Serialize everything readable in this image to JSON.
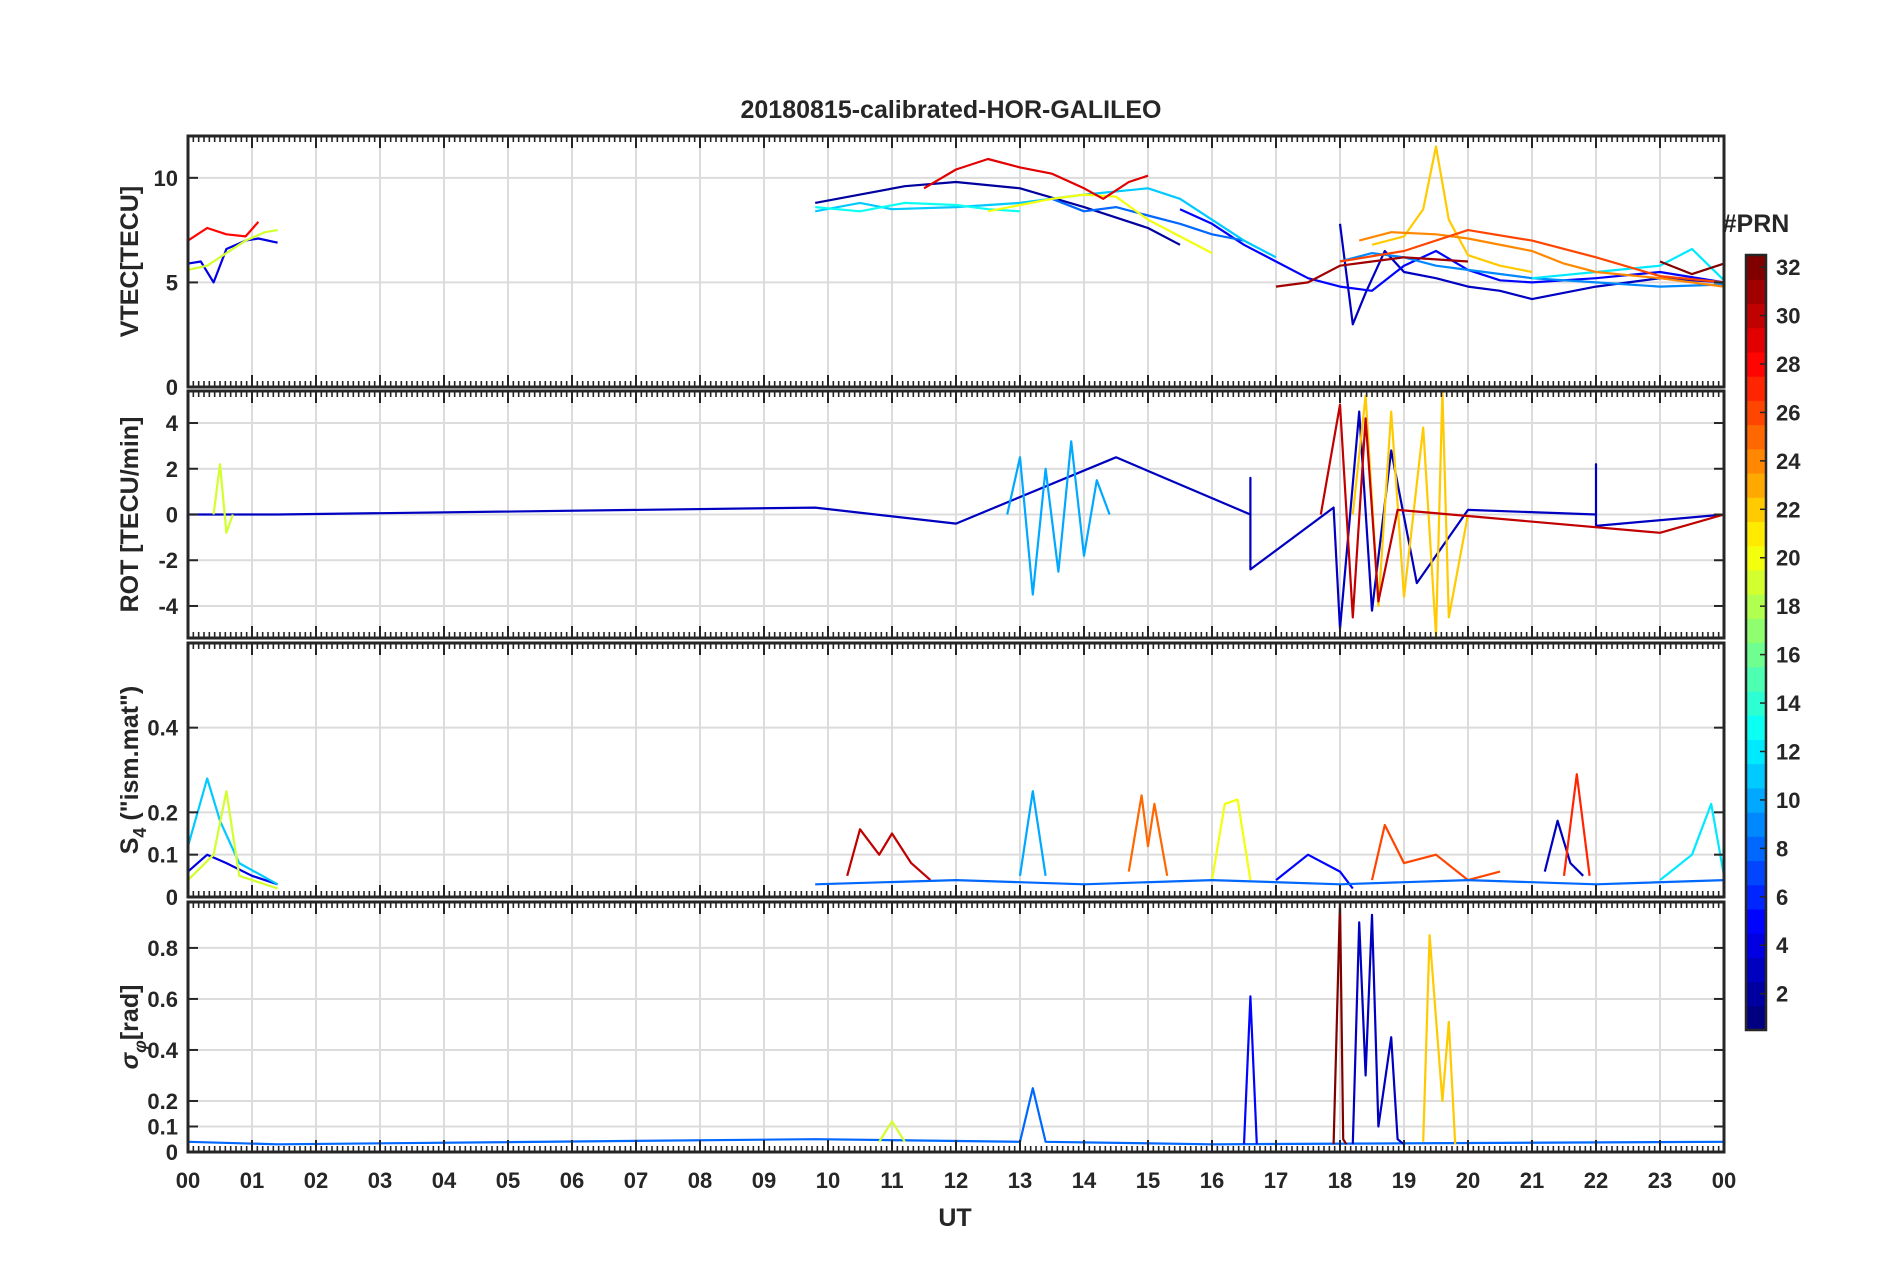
{
  "chart_data": {
    "type": "line",
    "title": "20180815-calibrated-HOR-GALILEO",
    "xlabel": "UT",
    "x_ticks": [
      "00",
      "01",
      "02",
      "03",
      "04",
      "05",
      "06",
      "07",
      "08",
      "09",
      "10",
      "11",
      "12",
      "13",
      "14",
      "15",
      "16",
      "17",
      "18",
      "19",
      "20",
      "21",
      "22",
      "23",
      "00"
    ],
    "xlim": [
      0,
      24
    ],
    "panels": [
      {
        "id": "vtec",
        "ylabel": "VTEC[TECU]",
        "ylim": [
          0,
          12
        ],
        "yticks": [
          {
            "v": 0,
            "label": "0"
          },
          {
            "v": 5,
            "label": "5"
          },
          {
            "v": 10,
            "label": "10"
          }
        ],
        "series": [
          {
            "prn": 2,
            "x": [
              9.8,
              10.5,
              11.2,
              12.0,
              13.0,
              14.0,
              15.0,
              15.5
            ],
            "y": [
              8.8,
              9.2,
              9.6,
              9.8,
              9.5,
              8.6,
              7.6,
              6.8
            ]
          },
          {
            "prn": 3,
            "x": [
              18.0,
              18.2,
              18.4,
              18.7,
              19.0,
              19.5,
              20.0,
              20.5,
              21.0,
              22.0,
              23.0,
              24.0
            ],
            "y": [
              7.8,
              3.0,
              4.5,
              6.5,
              5.5,
              5.2,
              4.8,
              4.6,
              4.2,
              4.8,
              5.2,
              5.0
            ]
          },
          {
            "prn": 4,
            "x": [
              0.0,
              0.2,
              0.4,
              0.6,
              0.9,
              1.1,
              1.4
            ],
            "y": [
              5.9,
              6.0,
              5.0,
              6.6,
              7.0,
              7.1,
              6.9
            ]
          },
          {
            "prn": 5,
            "x": [
              15.5,
              16.0,
              16.5,
              17.0,
              17.5,
              18.0,
              18.5,
              19.0,
              19.5,
              20.0,
              20.5,
              21.0,
              22.0,
              23.0,
              24.0
            ],
            "y": [
              8.5,
              7.8,
              6.8,
              6.0,
              5.2,
              4.8,
              4.6,
              5.8,
              6.5,
              5.6,
              5.1,
              5.0,
              5.2,
              5.5,
              5.0
            ]
          },
          {
            "prn": 8,
            "x": [
              13.5,
              14.0,
              14.5,
              15.0,
              15.5,
              16.0,
              16.5
            ],
            "y": [
              9.0,
              8.4,
              8.6,
              8.2,
              7.8,
              7.3,
              7.0
            ]
          },
          {
            "prn": 9,
            "x": [
              18.0,
              18.5,
              19.0,
              19.5,
              20.0,
              21.0,
              22.0,
              23.0,
              24.0
            ],
            "y": [
              6.0,
              6.4,
              6.2,
              5.8,
              5.6,
              5.2,
              5.0,
              4.8,
              4.9
            ]
          },
          {
            "prn": 11,
            "x": [
              9.8,
              10.5,
              11.0,
              12.0,
              13.0,
              14.0,
              15.0,
              15.5,
              16.0,
              16.5,
              17.0
            ],
            "y": [
              8.4,
              8.8,
              8.5,
              8.6,
              8.8,
              9.2,
              9.5,
              9.0,
              8.0,
              7.0,
              6.2
            ]
          },
          {
            "prn": 12,
            "x": [
              21.0,
              22.0,
              23.0,
              23.5,
              24.0
            ],
            "y": [
              5.2,
              5.5,
              5.8,
              6.6,
              5.1
            ]
          },
          {
            "prn": 13,
            "x": [
              9.8,
              10.5,
              11.2,
              12.0,
              12.5,
              13.0
            ],
            "y": [
              8.6,
              8.4,
              8.8,
              8.7,
              8.5,
              8.4
            ]
          },
          {
            "prn": 19,
            "x": [
              0.0,
              0.3,
              0.6,
              0.9,
              1.2,
              1.4
            ],
            "y": [
              5.6,
              5.8,
              6.4,
              7.0,
              7.4,
              7.5
            ]
          },
          {
            "prn": 20,
            "x": [
              12.5,
              13.0,
              13.5,
              14.0,
              14.5,
              15.0,
              15.5,
              16.0
            ],
            "y": [
              8.4,
              8.7,
              9.0,
              9.2,
              9.1,
              8.0,
              7.2,
              6.4
            ]
          },
          {
            "prn": 22,
            "x": [
              18.5,
              19.0,
              19.3,
              19.5,
              19.7,
              20.0,
              20.5,
              21.0
            ],
            "y": [
              6.8,
              7.2,
              8.5,
              11.5,
              8.0,
              6.3,
              5.8,
              5.5
            ]
          },
          {
            "prn": 24,
            "x": [
              18.3,
              18.8,
              19.5,
              20.0,
              21.0,
              21.5,
              22.0,
              23.0,
              24.0
            ],
            "y": [
              7.0,
              7.4,
              7.3,
              7.1,
              6.5,
              5.9,
              5.5,
              5.2,
              4.8
            ]
          },
          {
            "prn": 26,
            "x": [
              18.0,
              19.0,
              20.0,
              21.0,
              22.0,
              23.0,
              24.0
            ],
            "y": [
              6.0,
              6.5,
              7.5,
              7.0,
              6.2,
              5.3,
              5.0
            ]
          },
          {
            "prn": 28,
            "x": [
              0.0,
              0.3,
              0.6,
              0.9,
              1.1
            ],
            "y": [
              7.0,
              7.6,
              7.3,
              7.2,
              7.9
            ]
          },
          {
            "prn": 29,
            "x": [
              11.5,
              12.0,
              12.5,
              13.0,
              13.5,
              14.0,
              14.3,
              14.7,
              15.0
            ],
            "y": [
              9.5,
              10.4,
              10.9,
              10.5,
              10.2,
              9.5,
              9.0,
              9.8,
              10.1
            ]
          },
          {
            "prn": 31,
            "x": [
              17.0,
              17.5,
              18.0,
              18.5,
              19.0,
              19.5,
              20.0
            ],
            "y": [
              4.8,
              5.0,
              5.8,
              6.0,
              6.2,
              6.1,
              6.0
            ]
          },
          {
            "prn": 32,
            "x": [
              23.0,
              23.5,
              24.0
            ],
            "y": [
              6.0,
              5.4,
              5.9
            ]
          }
        ]
      },
      {
        "id": "rot",
        "ylabel": "ROT [TECU/min]",
        "ylim": [
          -5.4,
          5.4
        ],
        "yticks": [
          {
            "v": -4,
            "label": "-4"
          },
          {
            "v": -2,
            "label": "-2"
          },
          {
            "v": 0,
            "label": "0"
          },
          {
            "v": 2,
            "label": "2"
          },
          {
            "v": 4,
            "label": "4"
          }
        ],
        "series": [
          {
            "prn": 3,
            "x": [
              0.0,
              1.4,
              9.8,
              12.0,
              14.5,
              16.6,
              16.6,
              16.6,
              17.9,
              18.0,
              18.3,
              18.5,
              18.8,
              19.2,
              20.0,
              22.0,
              22.0,
              22.0,
              24.0
            ],
            "y": [
              0.0,
              0.0,
              0.3,
              -0.4,
              2.5,
              0.0,
              1.6,
              -2.4,
              0.3,
              -5.0,
              4.5,
              -4.2,
              2.8,
              -3.0,
              0.2,
              0.0,
              2.2,
              -0.5,
              0.0
            ]
          },
          {
            "prn": 10,
            "x": [
              12.8,
              13.0,
              13.2,
              13.4,
              13.6,
              13.8,
              14.0,
              14.2,
              14.4
            ],
            "y": [
              0.0,
              2.5,
              -3.5,
              2.0,
              -2.5,
              3.2,
              -1.8,
              1.5,
              0.0
            ]
          },
          {
            "prn": 19,
            "x": [
              0.4,
              0.5,
              0.6,
              0.7
            ],
            "y": [
              0.0,
              2.2,
              -0.8,
              0.0
            ]
          },
          {
            "prn": 22,
            "x": [
              18.2,
              18.4,
              18.6,
              18.8,
              19.0,
              19.3,
              19.5,
              19.6,
              19.7,
              20.0
            ],
            "y": [
              0.0,
              5.2,
              -4.0,
              4.5,
              -3.6,
              3.8,
              -5.3,
              5.4,
              -4.5,
              0.0
            ]
          },
          {
            "prn": 30,
            "x": [
              17.7,
              18.0,
              18.2,
              18.4,
              18.6,
              18.9,
              23.0,
              24.0
            ],
            "y": [
              0.0,
              4.8,
              -4.5,
              4.2,
              -3.8,
              0.2,
              -0.8,
              0.0
            ]
          }
        ]
      },
      {
        "id": "s4",
        "ylabel": "S4 (\"ism.mat\")",
        "ylabel_main": "S",
        "ylabel_sub": "4",
        "ylabel_rest": " (\"ism.mat\")",
        "ylim": [
          0,
          0.6
        ],
        "yticks": [
          {
            "v": 0,
            "label": "0"
          },
          {
            "v": 0.1,
            "label": "0.1"
          },
          {
            "v": 0.2,
            "label": "0.2"
          },
          {
            "v": 0.4,
            "label": "0.4"
          }
        ],
        "series": [
          {
            "prn": 4,
            "x": [
              0.0,
              0.3,
              0.6,
              1.0,
              1.4
            ],
            "y": [
              0.06,
              0.1,
              0.08,
              0.05,
              0.03
            ]
          },
          {
            "prn": 11,
            "x": [
              0.0,
              0.3,
              0.5,
              0.8,
              1.4
            ],
            "y": [
              0.12,
              0.28,
              0.18,
              0.08,
              0.03
            ]
          },
          {
            "prn": 19,
            "x": [
              0.0,
              0.4,
              0.6,
              0.8,
              1.4
            ],
            "y": [
              0.04,
              0.1,
              0.25,
              0.05,
              0.02
            ]
          },
          {
            "prn": 30,
            "x": [
              10.3,
              10.5,
              10.8,
              11.0,
              11.3,
              11.6
            ],
            "y": [
              0.05,
              0.16,
              0.1,
              0.15,
              0.08,
              0.04
            ]
          },
          {
            "prn": 10,
            "x": [
              13.0,
              13.2,
              13.4
            ],
            "y": [
              0.05,
              0.25,
              0.05
            ]
          },
          {
            "prn": 25,
            "x": [
              14.7,
              14.9,
              15.0,
              15.1,
              15.3
            ],
            "y": [
              0.06,
              0.24,
              0.12,
              0.22,
              0.05
            ]
          },
          {
            "prn": 20,
            "x": [
              16.0,
              16.2,
              16.4,
              16.6
            ],
            "y": [
              0.04,
              0.22,
              0.23,
              0.04
            ]
          },
          {
            "prn": 5,
            "x": [
              17.0,
              17.5,
              18.0,
              18.2
            ],
            "y": [
              0.04,
              0.1,
              0.06,
              0.02
            ]
          },
          {
            "prn": 26,
            "x": [
              18.5,
              18.7,
              19.0,
              19.5,
              20.0,
              20.5
            ],
            "y": [
              0.04,
              0.17,
              0.08,
              0.1,
              0.04,
              0.06
            ]
          },
          {
            "prn": 3,
            "x": [
              21.2,
              21.4,
              21.6,
              21.8
            ],
            "y": [
              0.06,
              0.18,
              0.08,
              0.05
            ]
          },
          {
            "prn": 27,
            "x": [
              21.5,
              21.7,
              21.9
            ],
            "y": [
              0.05,
              0.29,
              0.05
            ]
          },
          {
            "prn": 12,
            "x": [
              23.0,
              23.5,
              23.8,
              24.0
            ],
            "y": [
              0.04,
              0.1,
              0.22,
              0.05
            ]
          },
          {
            "prn": 8,
            "x": [
              9.8,
              12.0,
              14.0,
              16.0,
              18.0,
              20.0,
              22.0,
              24.0
            ],
            "y": [
              0.03,
              0.04,
              0.03,
              0.04,
              0.03,
              0.04,
              0.03,
              0.04
            ]
          }
        ]
      },
      {
        "id": "sigphi",
        "ylabel": "σφ[rad]",
        "ylabel_main": "σ",
        "ylabel_sub": "φ",
        "ylabel_rest": "[rad]",
        "ylim": [
          0,
          0.98
        ],
        "yticks": [
          {
            "v": 0,
            "label": "0"
          },
          {
            "v": 0.1,
            "label": "0.1"
          },
          {
            "v": 0.2,
            "label": "0.2"
          },
          {
            "v": 0.4,
            "label": "0.4"
          },
          {
            "v": 0.6,
            "label": "0.6"
          },
          {
            "v": 0.8,
            "label": "0.8"
          }
        ],
        "series": [
          {
            "prn": 8,
            "x": [
              0.0,
              1.4,
              9.8,
              13.0,
              13.2,
              13.4,
              16.0,
              24.0
            ],
            "y": [
              0.04,
              0.03,
              0.05,
              0.04,
              0.25,
              0.04,
              0.03,
              0.04
            ]
          },
          {
            "prn": 5,
            "x": [
              16.5,
              16.6,
              16.7
            ],
            "y": [
              0.03,
              0.61,
              0.03
            ]
          },
          {
            "prn": 32,
            "x": [
              17.9,
              18.0,
              18.05,
              18.1
            ],
            "y": [
              0.03,
              0.98,
              0.05,
              0.03
            ]
          },
          {
            "prn": 3,
            "x": [
              18.2,
              18.3,
              18.4,
              18.5,
              18.6,
              18.8,
              18.9,
              19.0
            ],
            "y": [
              0.03,
              0.9,
              0.3,
              0.93,
              0.1,
              0.45,
              0.05,
              0.03
            ]
          },
          {
            "prn": 22,
            "x": [
              19.3,
              19.4,
              19.6,
              19.7,
              19.8
            ],
            "y": [
              0.04,
              0.85,
              0.2,
              0.51,
              0.03
            ]
          },
          {
            "prn": 19,
            "x": [
              10.8,
              11.0,
              11.2
            ],
            "y": [
              0.04,
              0.12,
              0.04
            ]
          }
        ]
      }
    ],
    "colorbar": {
      "label": "#PRN",
      "range": [
        1,
        32
      ],
      "ticks": [
        "2",
        "4",
        "6",
        "8",
        "10",
        "12",
        "14",
        "16",
        "18",
        "20",
        "22",
        "24",
        "26",
        "28",
        "30",
        "32"
      ],
      "colormap": "jet"
    }
  }
}
